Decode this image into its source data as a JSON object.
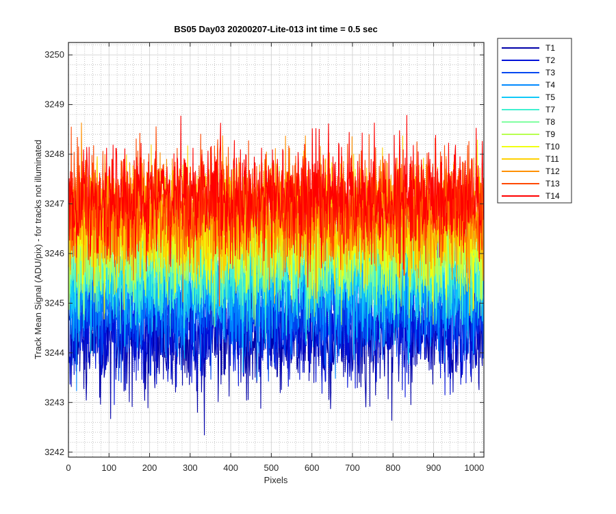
{
  "chart_data": {
    "type": "line",
    "title": "BS05 Day03 20200207-Lite-013 int time = 0.5 sec",
    "xlabel": "Pixels",
    "ylabel": "Track Mean Signal (ADU/pix) - for tracks not illuminated",
    "xlim": [
      0,
      1024
    ],
    "ylim": [
      3241.9,
      3250.25
    ],
    "xticks": [
      0,
      100,
      200,
      300,
      400,
      500,
      600,
      700,
      800,
      900,
      1000
    ],
    "yticks": [
      3242,
      3243,
      3244,
      3245,
      3246,
      3247,
      3248,
      3249,
      3250
    ],
    "grid": "major and minor",
    "legend_position": "outside-top-right",
    "series": [
      {
        "name": "T1",
        "color": "#0000a8",
        "mean": 3244.3,
        "spread": 0.55
      },
      {
        "name": "T2",
        "color": "#0010d8",
        "mean": 3244.6,
        "spread": 0.55
      },
      {
        "name": "T3",
        "color": "#0048f0",
        "mean": 3244.9,
        "spread": 0.55
      },
      {
        "name": "T4",
        "color": "#0088ff",
        "mean": 3245.2,
        "spread": 0.55
      },
      {
        "name": "T5",
        "color": "#10c8f8",
        "mean": 3245.5,
        "spread": 0.55
      },
      {
        "name": "T7",
        "color": "#40f0d0",
        "mean": 3245.8,
        "spread": 0.55
      },
      {
        "name": "T8",
        "color": "#80ffa0",
        "mean": 3246.0,
        "spread": 0.55
      },
      {
        "name": "T9",
        "color": "#b8ff50",
        "mean": 3246.2,
        "spread": 0.55
      },
      {
        "name": "T10",
        "color": "#f0ff10",
        "mean": 3246.4,
        "spread": 0.55
      },
      {
        "name": "T11",
        "color": "#ffd000",
        "mean": 3246.6,
        "spread": 0.55
      },
      {
        "name": "T12",
        "color": "#ff9000",
        "mean": 3246.8,
        "spread": 0.55
      },
      {
        "name": "T13",
        "color": "#ff4800",
        "mean": 3247.0,
        "spread": 0.55
      },
      {
        "name": "T14",
        "color": "#ff0000",
        "mean": 3247.1,
        "spread": 0.55
      }
    ]
  }
}
